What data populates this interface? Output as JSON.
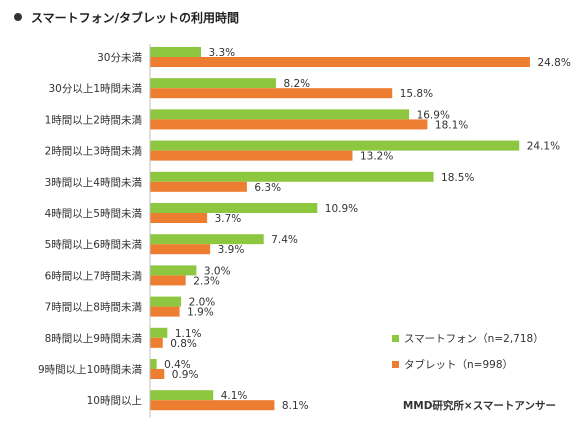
{
  "title": "スマートフォン/タブレットの利用時間",
  "source": "MMD研究所×スマートアンサー",
  "colors": {
    "smartphone": "#8dc63f",
    "tablet": "#ed7d31"
  },
  "chart_data": {
    "type": "bar",
    "orientation": "horizontal",
    "categories": [
      "30分未満",
      "30分以上1時間未満",
      "1時間以上2時間未満",
      "2時間以上3時間未満",
      "3時間以上4時間未満",
      "4時間以上5時間未満",
      "5時間以上6時間未満",
      "6時間以上7時間未満",
      "7時間以上8時間未満",
      "8時間以上9時間未満",
      "9時間以上10時間未満",
      "10時間以上"
    ],
    "series": [
      {
        "name": "スマートフォン（n=2,718）",
        "values": [
          3.3,
          8.2,
          16.9,
          24.1,
          18.5,
          10.9,
          7.4,
          3.0,
          2.0,
          1.1,
          0.4,
          4.1
        ],
        "labels": [
          "3.3%",
          "8.2%",
          "16.9%",
          "24.1%",
          "18.5%",
          "10.9%",
          "7.4%",
          "3.0%",
          "2.0%",
          "1.1%",
          "0.4%",
          "4.1%"
        ]
      },
      {
        "name": "タブレット（n=998）",
        "values": [
          24.8,
          15.8,
          18.1,
          13.2,
          6.3,
          3.7,
          3.9,
          2.3,
          1.9,
          0.8,
          0.9,
          8.1
        ],
        "labels": [
          "24.8%",
          "15.8%",
          "18.1%",
          "13.2%",
          "6.3%",
          "3.7%",
          "3.9%",
          "2.3%",
          "1.9%",
          "0.8%",
          "0.9%",
          "8.1%"
        ]
      }
    ],
    "xlim": [
      0,
      25
    ],
    "legend_position": "bottom-right",
    "grid": false
  }
}
